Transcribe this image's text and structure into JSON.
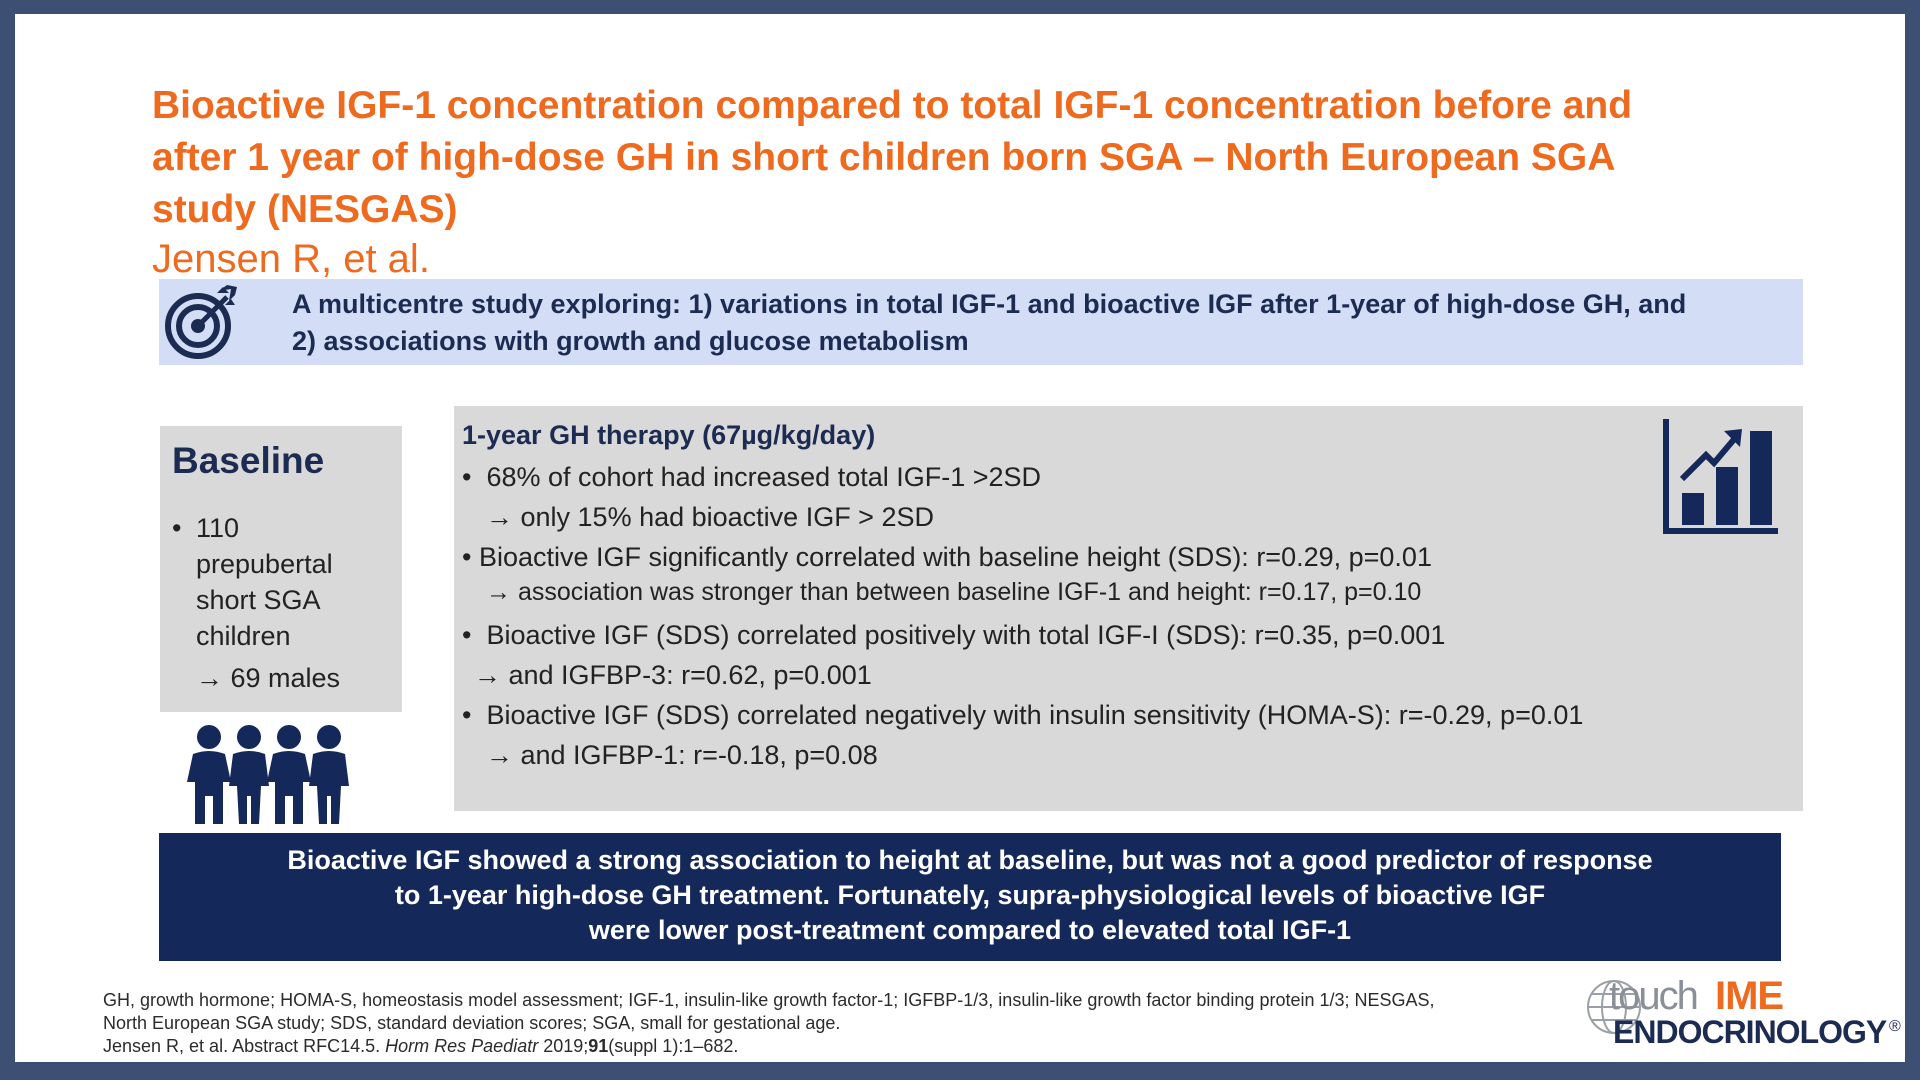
{
  "title": {
    "line1": "Bioactive IGF-1 concentration compared to total IGF-1 concentration before and",
    "line2": "after 1 year of high-dose GH in short children born SGA – North European SGA",
    "line3": "study (NESGAS)",
    "author": "Jensen R, et al."
  },
  "objective": {
    "line1": "A multicentre study exploring: 1) variations in total IGF-1 and bioactive IGF after 1-year of high-dose GH, and",
    "line2": "2) associations with growth and glucose metabolism",
    "icon": "target-icon"
  },
  "baseline": {
    "heading": "Baseline",
    "bullet": "•",
    "line1": "110",
    "line2": "prepubertal",
    "line3": "short SGA",
    "line4": "children",
    "sub": "→ 69 males",
    "icon": "people-group-icon"
  },
  "therapy": {
    "heading": "1-year GH therapy (67µg/kg/day)",
    "icon": "bar-chart-growth-icon",
    "bullet": "•",
    "l1": "68% of cohort had increased total IGF-1 >2SD",
    "l1a": "→ only 15% had bioactive IGF > 2SD",
    "l2": "Bioactive IGF significantly correlated with baseline height (SDS): r=0.29, p=0.01",
    "l2a": "→ association was stronger than between baseline IGF-1 and height: r=0.17, p=0.10",
    "l3": "Bioactive IGF (SDS) correlated positively with total IGF-I (SDS): r=0.35, p=0.001",
    "l3a": "→ and IGFBP-3: r=0.62, p=0.001",
    "l4": "Bioactive IGF (SDS) correlated negatively with insulin sensitivity (HOMA-S): r=-0.29, p=0.01",
    "l4a": "→ and IGFBP-1: r=-0.18, p=0.08"
  },
  "conclusion": {
    "line1": "Bioactive IGF showed a strong association to height at baseline, but was not a good predictor of response",
    "line2": "to 1-year high-dose GH treatment. Fortunately, supra-physiological levels of bioactive IGF",
    "line3": "were lower post-treatment compared to elevated total IGF-1"
  },
  "footer": {
    "abbrev1": "GH, growth hormone; HOMA-S, homeostasis model assessment; IGF-1, insulin-like growth factor-1; IGFBP-1/3, insulin-like growth factor binding protein 1/3; NESGAS,",
    "abbrev2": "North European SGA study; SDS, standard deviation scores; SGA, small for gestational age.",
    "ref_prefix": "Jensen R, et al. Abstract RFC14.5. ",
    "ref_journal": "Horm Res Paediatr",
    "ref_year": " 2019;",
    "ref_volume": "91",
    "ref_suffix": "(suppl 1):1–682."
  },
  "logo": {
    "touch": "touch",
    "ime": "IME",
    "endo": "ENDOCRINOLOGY",
    "reg": "®"
  },
  "colors": {
    "accent_orange": "#ee6a1f",
    "navy": "#14285a",
    "objective_bg": "#d3ddf5",
    "panel_grey": "#d9d9d9",
    "frame": "#3d4f72"
  }
}
